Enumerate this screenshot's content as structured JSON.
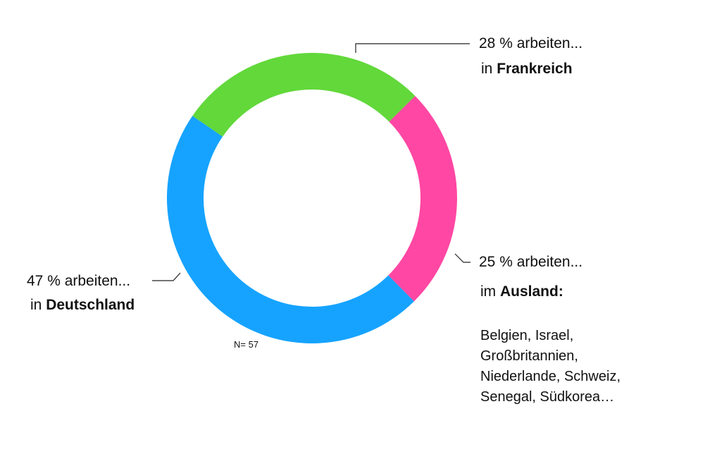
{
  "chart_data": {
    "type": "pie",
    "variant": "donut",
    "series": [
      {
        "name": "Frankreich",
        "value": 28,
        "color": "#62d83b"
      },
      {
        "name": "Ausland",
        "value": 25,
        "color": "#ff47a3"
      },
      {
        "name": "Deutschland",
        "value": 47,
        "color": "#16a3ff"
      }
    ],
    "sample_size": "N= 57"
  },
  "labels": {
    "frankreich": {
      "line1": "28 % arbeiten...",
      "prefix": "in ",
      "bold": "Frankreich"
    },
    "ausland": {
      "line1": "25 % arbeiten...",
      "prefix": "im ",
      "bold": "Ausland:"
    },
    "deutschland": {
      "line1": "47 % arbeiten...",
      "prefix": "in ",
      "bold": "Deutschland"
    }
  },
  "ausland_countries": [
    "Belgien, Israel,",
    "Großbritannien,",
    "Niederlande, Schweiz,",
    "Senegal, Südkorea…"
  ]
}
